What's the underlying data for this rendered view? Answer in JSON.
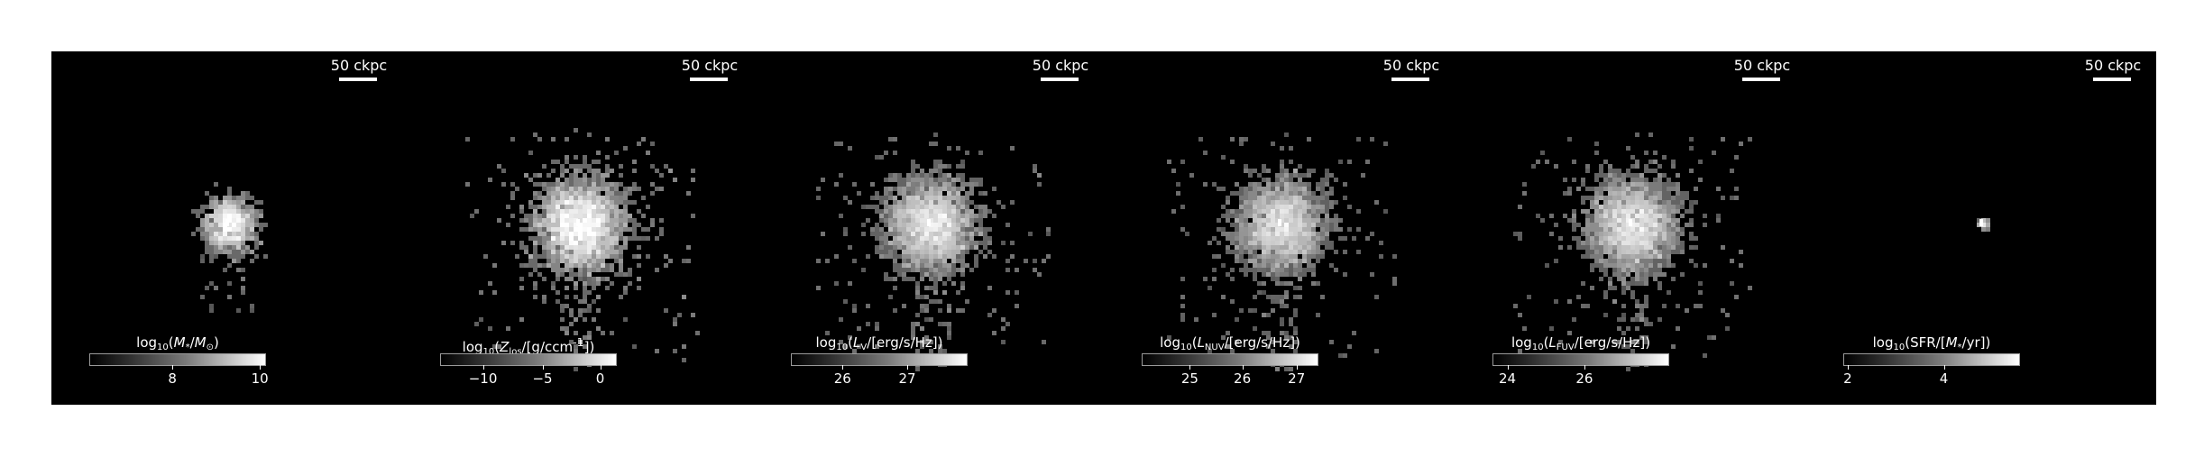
{
  "figure": {
    "panels": [
      {
        "id": "stellar-mass",
        "scale_bar": "50 ckpc",
        "colorbar_label_html": "log<sub>10</sub>(<i>M</i><sub>*</sub>/<i>M</i><sub>⊙</sub>)",
        "colorbar_ticks": [
          {
            "label": "8",
            "fraction": 0.47
          },
          {
            "label": "10",
            "fraction": 0.97
          }
        ],
        "brightness": 1.0,
        "extent": "compact"
      },
      {
        "id": "metallicity",
        "scale_bar": "50 ckpc",
        "colorbar_label_html": "log<sub>10</sub>(<i>Z</i><sub>los</sub>/[g/ccm<sup>-1</sup>])",
        "colorbar_ticks": [
          {
            "label": "−10",
            "fraction": 0.24
          },
          {
            "label": "−5",
            "fraction": 0.58
          },
          {
            "label": "0",
            "fraction": 0.91
          }
        ],
        "brightness": 1.0,
        "extent": "wide"
      },
      {
        "id": "v-band",
        "scale_bar": "50 ckpc",
        "colorbar_label_html": "log<sub>10</sub>(<i>L</i><sub>V</sub>/[erg/s/Hz])",
        "colorbar_ticks": [
          {
            "label": "26",
            "fraction": 0.29
          },
          {
            "label": "27",
            "fraction": 0.66
          }
        ],
        "brightness": 0.9,
        "extent": "wide"
      },
      {
        "id": "nuv",
        "scale_bar": "50 ckpc",
        "colorbar_label_html": "log<sub>10</sub>(<i>L</i><sub>NUV</sub>/[erg/s/Hz])",
        "colorbar_ticks": [
          {
            "label": "25",
            "fraction": 0.27
          },
          {
            "label": "26",
            "fraction": 0.57
          },
          {
            "label": "27",
            "fraction": 0.88
          }
        ],
        "brightness": 0.9,
        "extent": "wide"
      },
      {
        "id": "fuv",
        "scale_bar": "50 ckpc",
        "colorbar_label_html": "log<sub>10</sub>(<i>L</i><sub>FUV</sub>/[erg/s/Hz])",
        "colorbar_ticks": [
          {
            "label": "24",
            "fraction": 0.08
          },
          {
            "label": "26",
            "fraction": 0.52
          }
        ],
        "brightness": 0.9,
        "extent": "wide"
      },
      {
        "id": "sfr",
        "scale_bar": "50 ckpc",
        "colorbar_label_html": "log<sub>10</sub>(SFR/[<i>M</i><sub>*</sub>/yr])",
        "colorbar_ticks": [
          {
            "label": "2",
            "fraction": 0.02
          },
          {
            "label": "4",
            "fraction": 0.57
          }
        ],
        "brightness": 0.8,
        "extent": "point"
      }
    ]
  }
}
